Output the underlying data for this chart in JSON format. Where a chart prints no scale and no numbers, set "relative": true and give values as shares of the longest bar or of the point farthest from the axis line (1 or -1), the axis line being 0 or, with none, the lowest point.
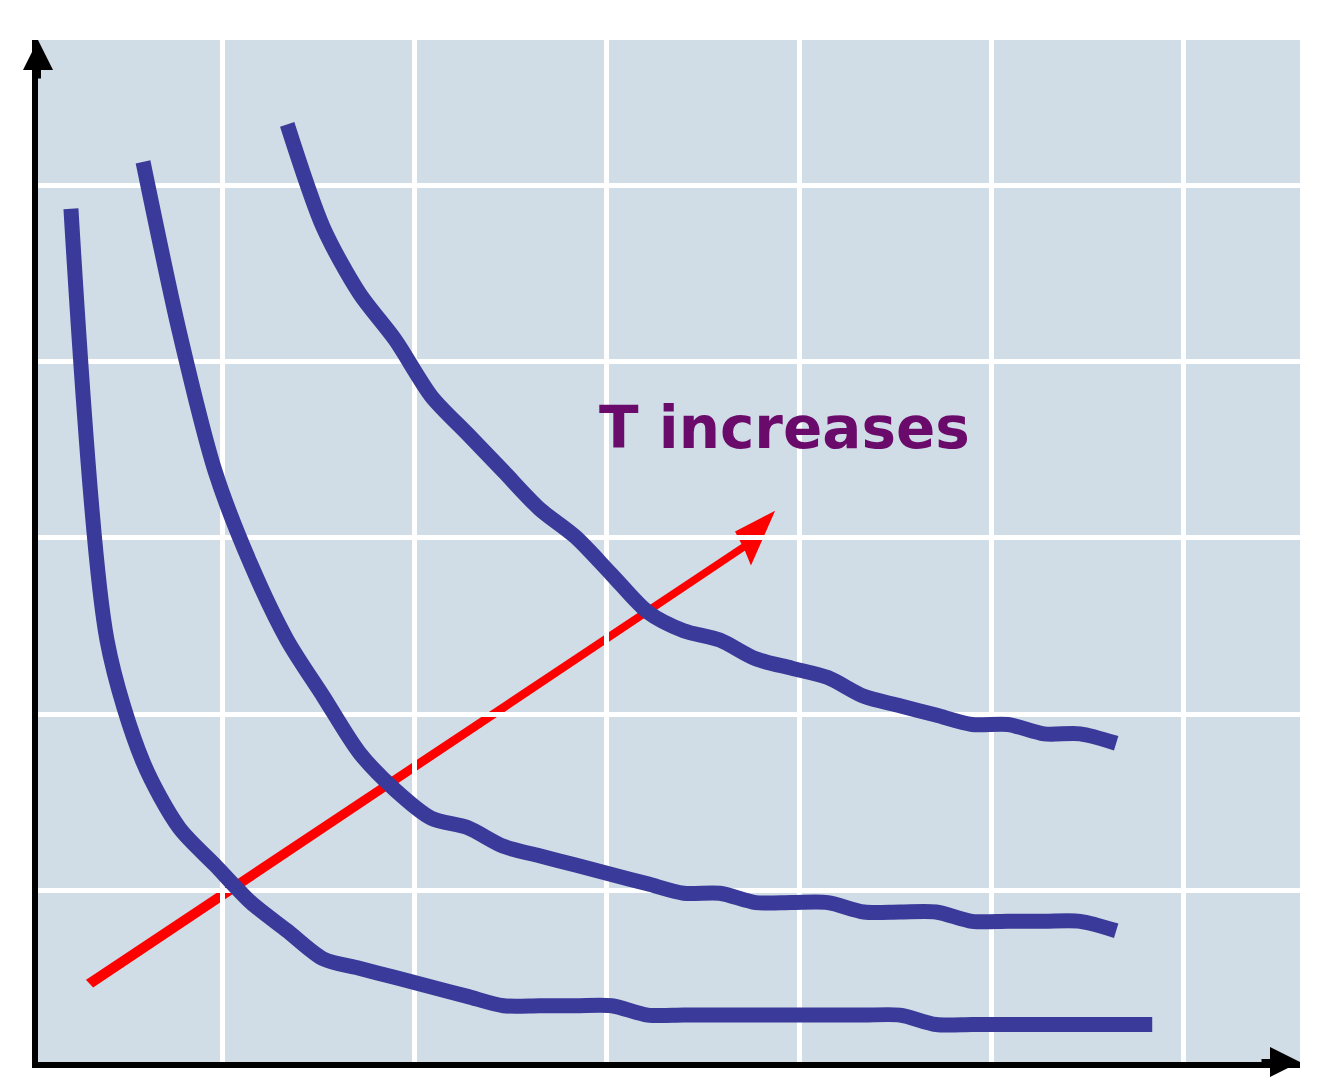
{
  "chart_data": {
    "type": "line",
    "relative": true,
    "grid": true,
    "marker": "none",
    "line_style": "solid",
    "categories": [
      null,
      null,
      null,
      null,
      null,
      null,
      null,
      null,
      null,
      null,
      null,
      null,
      null,
      null,
      null,
      null,
      null,
      null,
      null,
      null,
      null,
      null,
      null,
      null,
      null,
      null,
      null,
      null,
      null,
      null,
      null
    ],
    "annotations": [
      "T increases"
    ],
    "series": [
      {
        "color": "#3a3a9a",
        "values": [
          0.91,
          0.45,
          0.32,
          0.25,
          0.21,
          0.17,
          0.14,
          0.11,
          0.1,
          0.09,
          0.08,
          0.07,
          0.06,
          0.06,
          0.06,
          0.06,
          0.05,
          0.05,
          0.05,
          0.05,
          0.05,
          0.05,
          0.05,
          0.05,
          0.04,
          0.04,
          0.04,
          0.04,
          0.04,
          0.04,
          0.04
        ]
      },
      {
        "color": "#3a3a9a",
        "values": [
          null,
          null,
          0.96,
          0.78,
          0.63,
          0.53,
          0.45,
          0.39,
          0.33,
          0.29,
          0.26,
          0.25,
          0.23,
          0.22,
          0.21,
          0.2,
          0.19,
          0.18,
          0.18,
          0.17,
          0.17,
          0.17,
          0.16,
          0.16,
          0.16,
          0.15,
          0.15,
          0.15,
          0.15,
          0.14,
          null
        ]
      },
      {
        "color": "#3a3a9a",
        "values": [
          null,
          null,
          null,
          null,
          null,
          null,
          1.0,
          0.89,
          0.82,
          0.77,
          0.71,
          0.67,
          0.63,
          0.59,
          0.56,
          0.52,
          0.48,
          0.46,
          0.45,
          0.43,
          0.42,
          0.41,
          0.39,
          0.38,
          0.37,
          0.36,
          0.36,
          0.35,
          0.35,
          0.34,
          null
        ]
      }
    ]
  }
}
